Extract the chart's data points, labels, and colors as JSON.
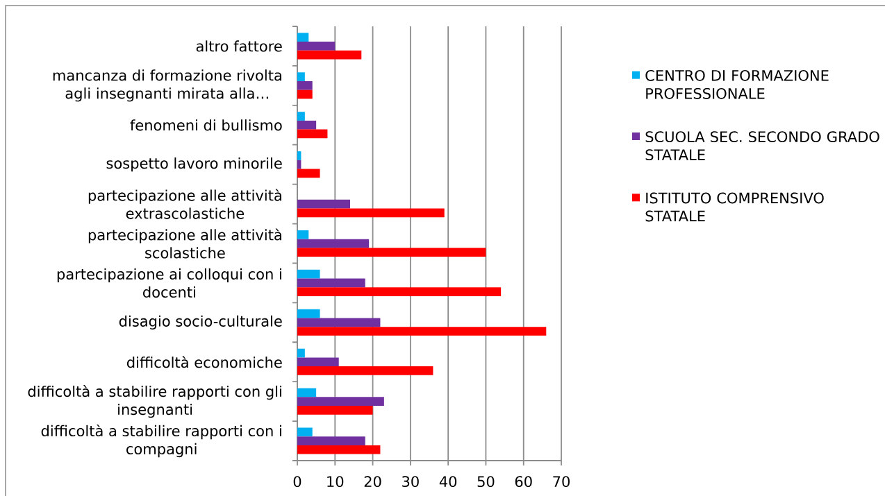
{
  "chart_data": {
    "type": "bar",
    "orientation": "horizontal",
    "categories": [
      "altro fattore",
      "mancanza di formazione rivolta agli insegnanti mirata alla…",
      "fenomeni di bullismo",
      "sospetto lavoro minorile",
      "partecipazione alle attività extrascolastiche",
      "partecipazione alle attività scolastiche",
      "partecipazione ai colloqui con i docenti",
      "disagio socio-culturale",
      "difficoltà economiche",
      "difficoltà a stabilire rapporti con gli insegnanti",
      "difficoltà a stabilire rapporti con i compagni"
    ],
    "series": [
      {
        "name": "CENTRO DI FORMAZIONE PROFESSIONALE",
        "color": "#00b0f0",
        "values": [
          3,
          2,
          2,
          1,
          0,
          3,
          6,
          6,
          2,
          5,
          4
        ]
      },
      {
        "name": "SCUOLA SEC. SECONDO GRADO STATALE",
        "color": "#7030a0",
        "values": [
          10,
          4,
          5,
          1,
          14,
          19,
          18,
          22,
          11,
          23,
          18
        ]
      },
      {
        "name": "ISTITUTO COMPRENSIVO STATALE",
        "color": "#ff0000",
        "values": [
          17,
          4,
          8,
          6,
          39,
          50,
          54,
          66,
          36,
          20,
          22
        ]
      }
    ],
    "xlim": [
      0,
      70
    ],
    "xticks": [
      0,
      10,
      20,
      30,
      40,
      50,
      60,
      70
    ],
    "grid": "x",
    "legend": "right"
  }
}
